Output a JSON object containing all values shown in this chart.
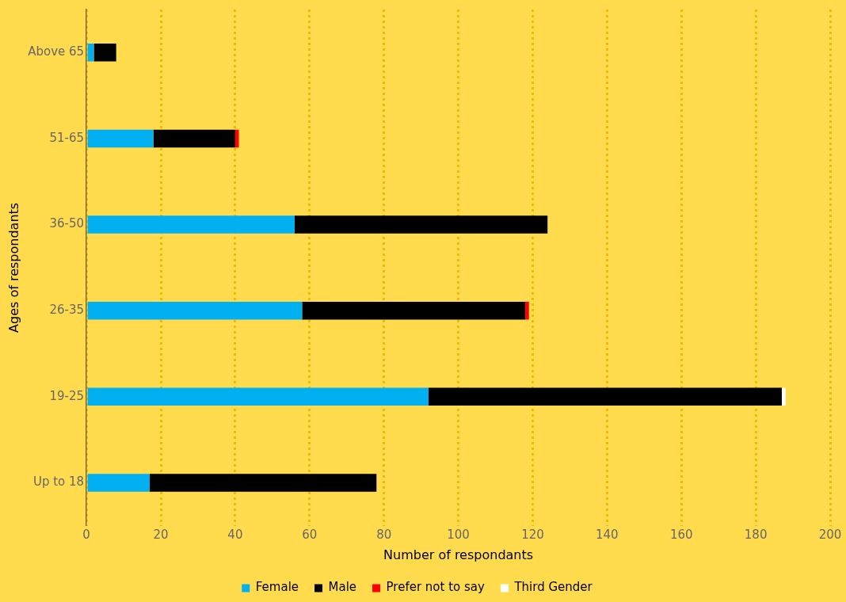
{
  "chart_data": {
    "type": "bar",
    "orientation": "horizontal",
    "stacked": true,
    "categories": [
      "Above 65",
      "51-65",
      "36-50",
      "26-35",
      "19-25",
      "Up to 18"
    ],
    "series": [
      {
        "name": "Female",
        "color": "#00b0f0",
        "values": [
          2,
          18,
          56,
          58,
          92,
          17
        ]
      },
      {
        "name": "Male",
        "color": "#000000",
        "values": [
          6,
          22,
          68,
          60,
          95,
          61
        ]
      },
      {
        "name": "Prefer not to say",
        "color": "#ff0000",
        "values": [
          null,
          1,
          null,
          1,
          null,
          null
        ]
      },
      {
        "name": "Third Gender",
        "color": "#ffffff",
        "values": [
          null,
          null,
          null,
          null,
          1,
          null
        ]
      }
    ],
    "xlim": [
      0,
      200
    ],
    "xticks": [
      0,
      20,
      40,
      60,
      80,
      100,
      120,
      140,
      160,
      180,
      200
    ],
    "xlabel": "Number of respondants",
    "ylabel": "Ages of respondants",
    "grid": "x",
    "legend": "bottom"
  }
}
